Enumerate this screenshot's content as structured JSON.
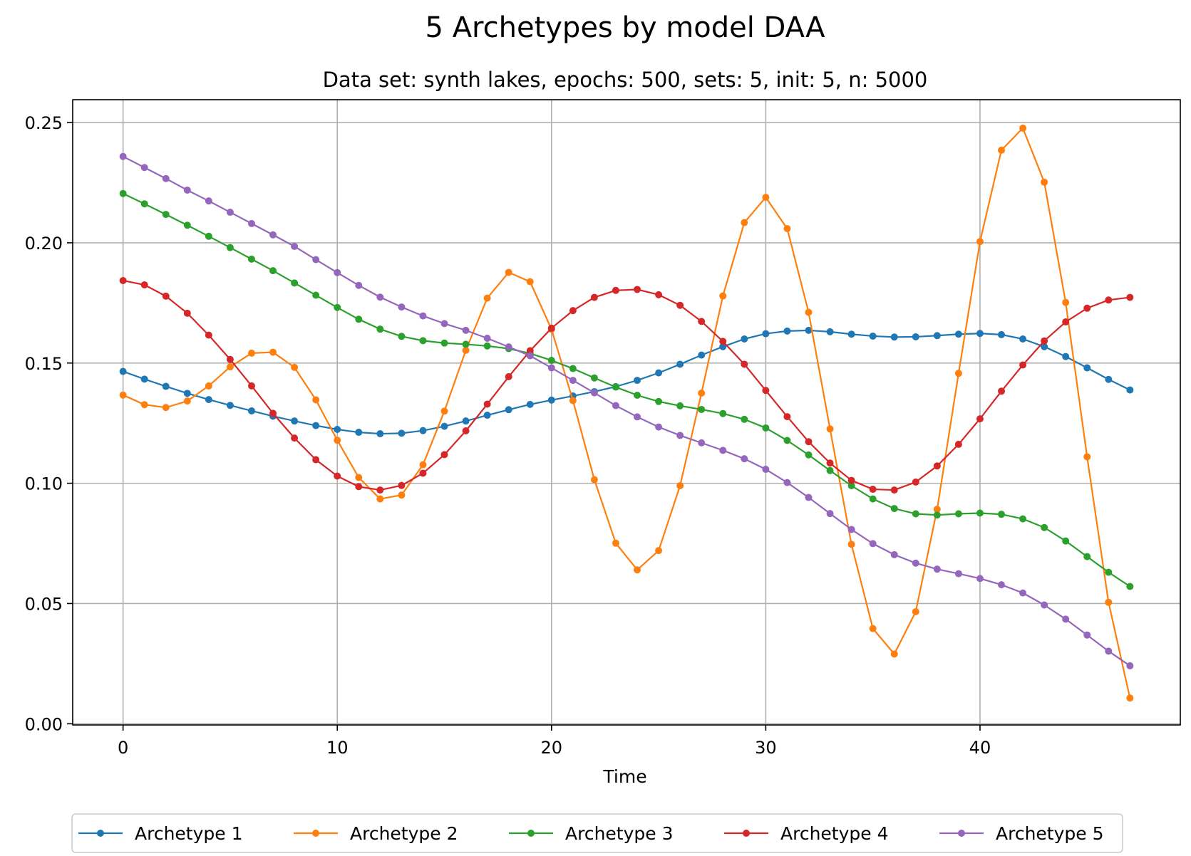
{
  "chart_data": {
    "type": "line",
    "title": "5 Archetypes by model DAA",
    "subtitle": "Data set: synth lakes, epochs: 500, sets: 5, init: 5, n: 5000",
    "xlabel": "Time",
    "ylabel": "",
    "xlim": [
      -2.35,
      49.35
    ],
    "ylim": [
      -0.0005,
      0.2595
    ],
    "xticks": [
      0,
      10,
      20,
      30,
      40
    ],
    "xtick_labels": [
      "0",
      "10",
      "20",
      "30",
      "40"
    ],
    "yticks": [
      0.0,
      0.05,
      0.1,
      0.15,
      0.2,
      0.25
    ],
    "ytick_labels": [
      "0.00",
      "0.05",
      "0.10",
      "0.15",
      "0.20",
      "0.25"
    ],
    "grid": true,
    "legend_position": "bottom-center",
    "x": [
      0,
      1,
      2,
      3,
      4,
      5,
      6,
      7,
      8,
      9,
      10,
      11,
      12,
      13,
      14,
      15,
      16,
      17,
      18,
      19,
      20,
      21,
      22,
      23,
      24,
      25,
      26,
      27,
      28,
      29,
      30,
      31,
      32,
      33,
      34,
      35,
      36,
      37,
      38,
      39,
      40,
      41,
      42,
      43,
      44,
      45,
      46,
      47
    ],
    "series": [
      {
        "name": "Archetype 1",
        "color": "#1f77b4",
        "values": [
          0.1465,
          0.1433,
          0.1403,
          0.1374,
          0.1348,
          0.1324,
          0.1301,
          0.1279,
          0.1259,
          0.124,
          0.1224,
          0.1212,
          0.1206,
          0.1208,
          0.1219,
          0.1237,
          0.1259,
          0.1283,
          0.1306,
          0.1328,
          0.1346,
          0.1363,
          0.1381,
          0.1402,
          0.1428,
          0.1459,
          0.1495,
          0.1533,
          0.1568,
          0.16,
          0.1622,
          0.1633,
          0.1636,
          0.163,
          0.162,
          0.1612,
          0.1608,
          0.1609,
          0.1614,
          0.162,
          0.1623,
          0.1618,
          0.16,
          0.1568,
          0.1527,
          0.148,
          0.1432,
          0.1388
        ]
      },
      {
        "name": "Archetype 2",
        "color": "#ff7f0e",
        "values": [
          0.1367,
          0.1327,
          0.1315,
          0.1342,
          0.1405,
          0.1484,
          0.1541,
          0.1545,
          0.1482,
          0.1347,
          0.1179,
          0.1024,
          0.0935,
          0.0951,
          0.1077,
          0.13,
          0.1553,
          0.177,
          0.1877,
          0.1838,
          0.164,
          0.1344,
          0.1015,
          0.0751,
          0.064,
          0.072,
          0.099,
          0.1375,
          0.1779,
          0.2084,
          0.2189,
          0.2059,
          0.1711,
          0.1226,
          0.0746,
          0.0396,
          0.029,
          0.0466,
          0.0892,
          0.1457,
          0.2005,
          0.2385,
          0.2477,
          0.2252,
          0.1752,
          0.111,
          0.0505,
          0.0107
        ]
      },
      {
        "name": "Archetype 3",
        "color": "#2ca02c",
        "values": [
          0.2205,
          0.2162,
          0.2118,
          0.2073,
          0.2027,
          0.198,
          0.1932,
          0.1884,
          0.1833,
          0.1782,
          0.1731,
          0.1682,
          0.1641,
          0.1611,
          0.1593,
          0.1583,
          0.1578,
          0.1571,
          0.156,
          0.154,
          0.1511,
          0.1477,
          0.1438,
          0.14,
          0.1366,
          0.134,
          0.1322,
          0.1307,
          0.129,
          0.1266,
          0.123,
          0.1178,
          0.1118,
          0.1053,
          0.099,
          0.0935,
          0.0895,
          0.0873,
          0.0868,
          0.0873,
          0.0876,
          0.0871,
          0.0852,
          0.0816,
          0.076,
          0.0695,
          0.063,
          0.0571
        ]
      },
      {
        "name": "Archetype 4",
        "color": "#d62728",
        "values": [
          0.1843,
          0.1825,
          0.1778,
          0.1707,
          0.1616,
          0.1515,
          0.1405,
          0.1291,
          0.1188,
          0.1098,
          0.103,
          0.0986,
          0.0972,
          0.0991,
          0.1042,
          0.1119,
          0.1218,
          0.1329,
          0.1443,
          0.1551,
          0.1645,
          0.1718,
          0.1773,
          0.1802,
          0.1806,
          0.1784,
          0.174,
          0.1673,
          0.159,
          0.1495,
          0.1386,
          0.1277,
          0.1173,
          0.1084,
          0.1012,
          0.0975,
          0.0972,
          0.1005,
          0.1072,
          0.1162,
          0.1268,
          0.1383,
          0.1492,
          0.1592,
          0.1671,
          0.1728,
          0.1762,
          0.1773
        ]
      },
      {
        "name": "Archetype 5",
        "color": "#9467bd",
        "values": [
          0.2359,
          0.2313,
          0.2267,
          0.2219,
          0.2174,
          0.2127,
          0.208,
          0.2033,
          0.1985,
          0.193,
          0.1876,
          0.1823,
          0.1774,
          0.1733,
          0.1696,
          0.1664,
          0.1636,
          0.1603,
          0.1567,
          0.153,
          0.148,
          0.1428,
          0.1376,
          0.1323,
          0.1276,
          0.1234,
          0.1199,
          0.1168,
          0.1137,
          0.1102,
          0.1058,
          0.1003,
          0.0941,
          0.0874,
          0.0808,
          0.0749,
          0.0703,
          0.0668,
          0.0643,
          0.0624,
          0.0604,
          0.0578,
          0.0544,
          0.0494,
          0.0435,
          0.0369,
          0.0302,
          0.0241
        ]
      }
    ]
  }
}
